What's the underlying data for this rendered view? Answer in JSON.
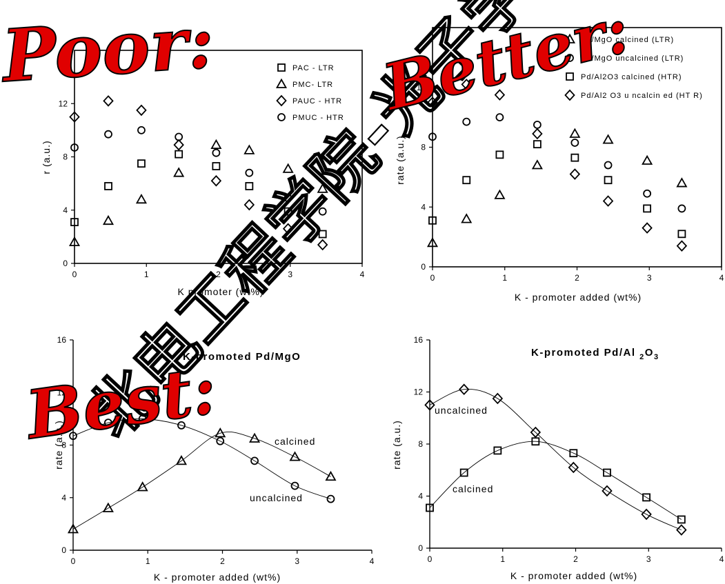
{
  "stamps": {
    "poor": "Poor:",
    "better": "Better:",
    "best": "Best:"
  },
  "watermark": "北电工程学院-光子学",
  "chart_data": [
    {
      "id": "tl",
      "type": "scatter",
      "title": "",
      "xlabel": "K promoter (wt%)",
      "ylabel": "r (a.u.)",
      "xlim": [
        0,
        4
      ],
      "ylim": [
        0,
        16
      ],
      "xticks": [
        0,
        1,
        2,
        3,
        4
      ],
      "yticks": [
        0,
        4,
        8,
        12
      ],
      "legend_position": "top-right",
      "series": [
        {
          "name": "PAC - LTR",
          "marker": "square",
          "x": [
            0,
            0.47,
            0.93,
            1.45,
            1.97,
            2.43,
            2.97,
            3.45
          ],
          "y": [
            3.1,
            5.8,
            7.5,
            8.2,
            7.3,
            5.8,
            3.9,
            2.2
          ]
        },
        {
          "name": "PMC- LTR",
          "marker": "triangle",
          "x": [
            0,
            0.47,
            0.93,
            1.45,
            1.97,
            2.43,
            2.97,
            3.45
          ],
          "y": [
            1.6,
            3.2,
            4.8,
            6.8,
            8.9,
            8.5,
            7.1,
            5.6
          ]
        },
        {
          "name": "PAUC - HTR",
          "marker": "diamond",
          "x": [
            0,
            0.47,
            0.93,
            1.45,
            1.97,
            2.43,
            2.97,
            3.45
          ],
          "y": [
            11.0,
            12.2,
            11.5,
            8.9,
            6.2,
            4.4,
            2.6,
            1.4
          ]
        },
        {
          "name": "PMUC - HTR",
          "marker": "circle",
          "x": [
            0,
            0.47,
            0.93,
            1.45,
            1.97,
            2.43,
            2.97,
            3.45
          ],
          "y": [
            8.7,
            9.7,
            10.0,
            9.5,
            8.3,
            6.8,
            4.9,
            3.9
          ]
        }
      ]
    },
    {
      "id": "tr",
      "type": "scatter",
      "title": "",
      "xlabel": "K - promoter added (wt%)",
      "ylabel": "rate (a.u.)",
      "xlim": [
        0,
        4
      ],
      "ylim": [
        0,
        16
      ],
      "xticks": [
        0,
        1,
        2,
        3,
        4
      ],
      "yticks": [
        0,
        4,
        8,
        12
      ],
      "legend_position": "top-right",
      "series": [
        {
          "name": "Pd/MgO calcined (LTR)",
          "marker": "triangle",
          "x": [
            0,
            0.47,
            0.93,
            1.45,
            1.97,
            2.43,
            2.97,
            3.45
          ],
          "y": [
            1.6,
            3.2,
            4.8,
            6.8,
            8.9,
            8.5,
            7.1,
            5.6
          ]
        },
        {
          "name": "Pd/MgO uncalcined (LTR)",
          "marker": "circle",
          "x": [
            0,
            0.47,
            0.93,
            1.45,
            1.97,
            2.43,
            2.97,
            3.45
          ],
          "y": [
            8.7,
            9.7,
            10.0,
            9.5,
            8.3,
            6.8,
            4.9,
            3.9
          ]
        },
        {
          "name": "Pd/Al2O3 calcined (HTR)",
          "marker": "square",
          "x": [
            0,
            0.47,
            0.93,
            1.45,
            1.97,
            2.43,
            2.97,
            3.45
          ],
          "y": [
            3.1,
            5.8,
            7.5,
            8.2,
            7.3,
            5.8,
            3.9,
            2.2
          ]
        },
        {
          "name": "Pd/Al2 O3 u ncalcin ed (HT R)",
          "marker": "diamond",
          "x": [
            0,
            0.47,
            0.93,
            1.45,
            1.97,
            2.43,
            2.97,
            3.45
          ],
          "y": [
            11.0,
            12.2,
            11.5,
            8.9,
            6.2,
            4.4,
            2.6,
            1.4
          ]
        }
      ]
    },
    {
      "id": "bl",
      "type": "line",
      "title": "K-promoted Pd/MgO",
      "xlabel": "K - promoter added (wt%)",
      "ylabel": "rate (a.u.)",
      "xlim": [
        0,
        4
      ],
      "ylim": [
        0,
        16
      ],
      "xticks": [
        0,
        1,
        2,
        3,
        4
      ],
      "yticks": [
        0,
        4,
        8,
        12,
        16
      ],
      "series": [
        {
          "name": "calcined",
          "marker": "triangle",
          "x": [
            0,
            0.47,
            0.93,
            1.45,
            1.97,
            2.43,
            2.97,
            3.45
          ],
          "y": [
            1.6,
            3.2,
            4.8,
            6.8,
            8.9,
            8.5,
            7.1,
            5.6
          ]
        },
        {
          "name": "uncalcined",
          "marker": "circle",
          "x": [
            0,
            0.47,
            0.93,
            1.45,
            1.97,
            2.43,
            2.97,
            3.45
          ],
          "y": [
            8.7,
            9.7,
            10.0,
            9.5,
            8.3,
            6.8,
            4.9,
            3.9
          ]
        }
      ]
    },
    {
      "id": "br",
      "type": "line",
      "title": "K-promoted Pd/Al2O3",
      "xlabel": "K - promoter added (wt%)",
      "ylabel": "rate (a.u.)",
      "xlim": [
        0,
        4
      ],
      "ylim": [
        0,
        16
      ],
      "xticks": [
        0,
        1,
        2,
        3,
        4
      ],
      "yticks": [
        0,
        4,
        8,
        12,
        16
      ],
      "series": [
        {
          "name": "uncalcined",
          "marker": "diamond",
          "x": [
            0,
            0.47,
            0.93,
            1.45,
            1.97,
            2.43,
            2.97,
            3.45
          ],
          "y": [
            11.0,
            12.2,
            11.5,
            8.9,
            6.2,
            4.4,
            2.6,
            1.4
          ]
        },
        {
          "name": "calcined",
          "marker": "square",
          "x": [
            0,
            0.47,
            0.93,
            1.45,
            1.97,
            2.43,
            2.97,
            3.45
          ],
          "y": [
            3.1,
            5.8,
            7.5,
            8.2,
            7.3,
            5.8,
            3.9,
            2.2
          ]
        }
      ]
    }
  ]
}
